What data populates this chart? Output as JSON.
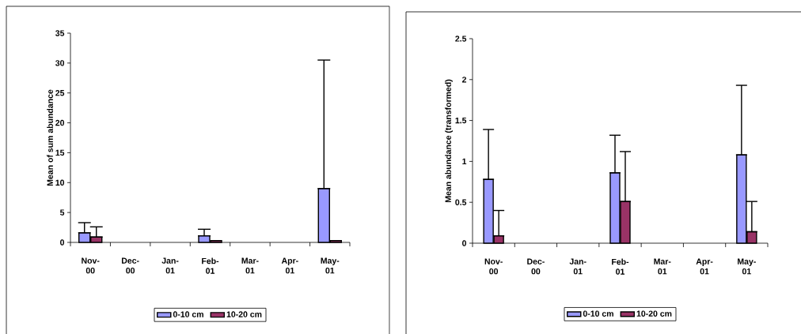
{
  "chart_data": [
    {
      "type": "bar",
      "ylabel": "Mean of sum abundance",
      "categories": [
        "Nov-00",
        "Dec-00",
        "Jan-01",
        "Feb-01",
        "Mar-01",
        "Apr-01",
        "May-01"
      ],
      "series": [
        {
          "name": "0-10 cm",
          "color": "#9999ff",
          "values": [
            1.6,
            null,
            null,
            1.1,
            null,
            null,
            9.0
          ],
          "errors": [
            [
              1.6,
              3.3
            ],
            null,
            null,
            [
              1.1,
              2.2
            ],
            null,
            null,
            [
              9.0,
              30.5
            ]
          ]
        },
        {
          "name": "10-20 cm",
          "color": "#993366",
          "values": [
            0.9,
            null,
            null,
            0.3,
            null,
            null,
            0.3
          ],
          "errors": [
            [
              0.9,
              2.6
            ],
            null,
            null,
            null,
            null,
            null,
            null
          ]
        }
      ],
      "ylim": [
        0,
        35
      ],
      "yticks": [
        0,
        5,
        10,
        15,
        20,
        25,
        30,
        35
      ],
      "legend": "bottom"
    },
    {
      "type": "bar",
      "ylabel": "Mean abundance (transformed)",
      "categories": [
        "Nov-00",
        "Dec-00",
        "Jan-01",
        "Feb-01",
        "Mar-01",
        "Apr-01",
        "May-01"
      ],
      "series": [
        {
          "name": "0-10 cm",
          "color": "#9999ff",
          "values": [
            0.78,
            null,
            null,
            0.86,
            null,
            null,
            1.08
          ],
          "errors": [
            [
              0.78,
              1.39
            ],
            null,
            null,
            [
              0.86,
              1.32
            ],
            null,
            null,
            [
              1.08,
              1.93
            ]
          ]
        },
        {
          "name": "10-20 cm",
          "color": "#993366",
          "values": [
            0.09,
            null,
            null,
            0.51,
            null,
            null,
            0.14
          ],
          "errors": [
            [
              0.09,
              0.4
            ],
            null,
            null,
            [
              0.51,
              1.12
            ],
            null,
            null,
            [
              0.14,
              0.51
            ]
          ]
        }
      ],
      "ylim": [
        0,
        2.5
      ],
      "yticks": [
        0,
        0.5,
        1,
        1.5,
        2,
        2.5
      ],
      "legend": "bottom"
    }
  ]
}
